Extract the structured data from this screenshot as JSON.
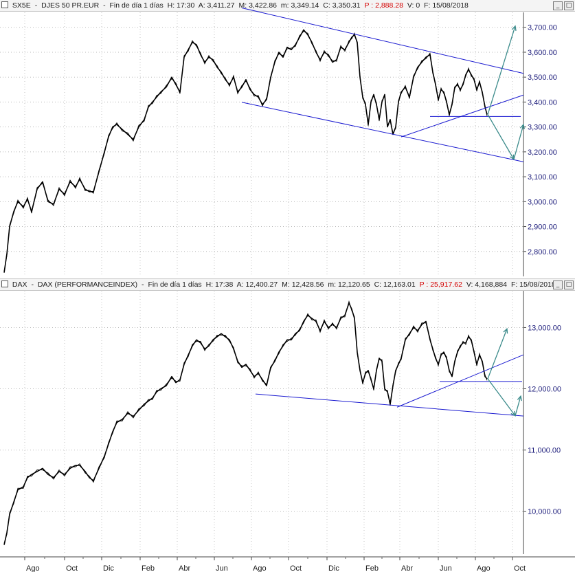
{
  "panels": [
    {
      "id": "sx5e",
      "header": {
        "symbol": "SX5E",
        "name": "DJES 50 PR.EUR",
        "period": "Fin de día 1 días",
        "h": "H: 17:30",
        "a": "A: 3,411.27",
        "m_high": "M: 3,422.86",
        "m_low": "m: 3,349.14",
        "c": "C: 3,350.31",
        "p": "P : 2,888.28",
        "v": "V: 0",
        "f": "F: 15/08/2018"
      }
    },
    {
      "id": "dax",
      "header": {
        "symbol": "DAX",
        "name": "DAX (PERFORMANCEINDEX)",
        "period": "Fin de día 1 días",
        "h": "H: 17:38",
        "a": "A: 12,400.27",
        "m_high": "M: 12,428.56",
        "m_low": "m: 12,120.65",
        "c": "C: 12,163.01",
        "p": "P : 25,917.62",
        "v": "V: 4,168,884",
        "f": "F: 15/08/2018"
      }
    }
  ],
  "window_buttons": [
    "_",
    "□"
  ],
  "chart_data": [
    {
      "type": "line",
      "title": "SX5E - DJES 50 PR.EUR",
      "color": "#000000",
      "line_color": "#1a1ad0",
      "arrow_color": "#3a8a8a",
      "ylim": [
        2700,
        3760
      ],
      "yticks": [
        2800,
        2900,
        3000,
        3100,
        3200,
        3300,
        3400,
        3500,
        3600,
        3700
      ],
      "ytick_labels": [
        "2,800.00",
        "2,900.00",
        "3,000.00",
        "3,100.00",
        "3,200.00",
        "3,300.00",
        "3,400.00",
        "3,500.00",
        "3,600.00",
        "3,700.00"
      ],
      "series": [
        {
          "x": [
            0,
            4,
            8,
            14,
            20,
            28,
            34,
            40,
            48,
            56,
            64,
            72,
            80,
            88,
            96,
            104,
            110,
            118,
            124,
            130,
            138,
            146,
            152,
            158,
            164,
            172,
            180,
            188,
            196,
            204,
            210,
            216,
            222,
            228,
            236,
            244,
            250,
            256,
            262,
            268,
            274,
            280,
            286,
            292,
            298,
            304,
            310,
            316,
            322,
            328,
            334,
            340,
            346,
            352,
            358,
            364,
            370,
            376,
            382,
            388,
            394,
            400,
            406,
            412,
            418,
            424,
            430,
            436,
            442,
            448,
            454,
            460,
            466,
            472,
            478,
            484,
            490,
            496,
            502,
            506,
            510,
            514,
            518,
            522,
            526,
            530,
            534,
            538,
            542,
            546,
            550,
            554,
            558,
            562,
            566,
            570,
            574,
            578,
            584,
            590,
            596,
            602,
            608,
            614,
            620,
            624,
            628,
            632,
            636,
            640,
            644,
            648,
            652,
            656,
            660,
            664,
            668,
            672,
            676,
            680,
            684,
            688,
            692,
            696,
            700,
            703
          ],
          "values": [
            2715,
            2790,
            2900,
            2960,
            3000,
            2980,
            3010,
            2960,
            3050,
            3080,
            3000,
            2990,
            3050,
            3030,
            3080,
            3060,
            3090,
            3050,
            3040,
            3040,
            3120,
            3200,
            3260,
            3300,
            3310,
            3290,
            3270,
            3250,
            3300,
            3330,
            3380,
            3400,
            3420,
            3440,
            3460,
            3500,
            3470,
            3440,
            3580,
            3610,
            3640,
            3630,
            3590,
            3560,
            3580,
            3570,
            3540,
            3520,
            3490,
            3470,
            3500,
            3440,
            3460,
            3490,
            3450,
            3430,
            3420,
            3390,
            3410,
            3500,
            3560,
            3600,
            3580,
            3620,
            3610,
            3630,
            3660,
            3690,
            3670,
            3640,
            3600,
            3570,
            3600,
            3590,
            3560,
            3570,
            3620,
            3610,
            3640,
            3660,
            3670,
            3640,
            3500,
            3420,
            3390,
            3310,
            3400,
            3430,
            3390,
            3330,
            3400,
            3430,
            3300,
            3330,
            3270,
            3300,
            3400,
            3440,
            3460,
            3420,
            3500,
            3540,
            3560,
            3580,
            3590,
            3520,
            3470,
            3410,
            3450,
            3440,
            3400,
            3350,
            3390,
            3460,
            3470,
            3450,
            3470,
            3510,
            3530,
            3510,
            3490,
            3450,
            3480,
            3440,
            3380,
            3350
          ]
        }
      ],
      "annotations": {
        "channel_upper": [
          [
            346,
            3778
          ],
          [
            756,
            3515
          ]
        ],
        "channel_lower": [
          [
            346,
            3399
          ],
          [
            756,
            3160
          ]
        ],
        "trend_support": [
          [
            578,
            3260
          ],
          [
            756,
            3428
          ]
        ],
        "horizontal_support": [
          [
            620,
            3342
          ],
          [
            752,
            3342
          ]
        ],
        "arrow_up_long": [
          [
            704,
            3350
          ],
          [
            744,
            3705
          ]
        ],
        "arrow_down": [
          [
            704,
            3350
          ],
          [
            742,
            3170
          ]
        ],
        "arrow_up_short": [
          [
            742,
            3170
          ],
          [
            756,
            3310
          ]
        ]
      }
    },
    {
      "type": "line",
      "title": "DAX - DAX (PERFORMANCEINDEX)",
      "color": "#000000",
      "line_color": "#1a1ad0",
      "arrow_color": "#3a8a8a",
      "ylim": [
        9300,
        13600
      ],
      "yticks": [
        10000,
        11000,
        12000,
        13000
      ],
      "ytick_labels": [
        "10,000.00",
        "11,000.00",
        "12,000.00",
        "13,000.00"
      ],
      "series": [
        {
          "x": [
            0,
            4,
            8,
            14,
            20,
            28,
            34,
            40,
            48,
            56,
            64,
            72,
            80,
            88,
            96,
            104,
            110,
            118,
            124,
            130,
            138,
            146,
            152,
            158,
            164,
            172,
            180,
            188,
            196,
            204,
            210,
            216,
            222,
            228,
            236,
            244,
            250,
            256,
            262,
            268,
            274,
            280,
            286,
            292,
            298,
            304,
            310,
            316,
            322,
            328,
            334,
            340,
            346,
            352,
            358,
            364,
            370,
            376,
            382,
            388,
            394,
            400,
            406,
            412,
            418,
            424,
            430,
            436,
            442,
            448,
            454,
            460,
            466,
            472,
            478,
            484,
            490,
            496,
            502,
            506,
            510,
            514,
            518,
            522,
            526,
            530,
            534,
            538,
            542,
            546,
            550,
            554,
            558,
            562,
            566,
            570,
            574,
            578,
            584,
            590,
            596,
            602,
            608,
            614,
            620,
            624,
            628,
            632,
            636,
            640,
            644,
            648,
            652,
            656,
            660,
            664,
            668,
            672,
            676,
            680,
            684,
            688,
            692,
            696,
            700,
            703
          ],
          "values": [
            9450,
            9650,
            9950,
            10150,
            10350,
            10400,
            10550,
            10600,
            10650,
            10700,
            10600,
            10550,
            10650,
            10600,
            10700,
            10750,
            10750,
            10650,
            10550,
            10500,
            10700,
            10900,
            11100,
            11300,
            11450,
            11500,
            11600,
            11550,
            11650,
            11750,
            11800,
            11850,
            11950,
            12000,
            12050,
            12200,
            12100,
            12150,
            12400,
            12550,
            12700,
            12800,
            12750,
            12650,
            12700,
            12800,
            12850,
            12900,
            12850,
            12800,
            12650,
            12450,
            12350,
            12400,
            12300,
            12200,
            12250,
            12150,
            12050,
            12350,
            12450,
            12600,
            12700,
            12800,
            12800,
            12900,
            12950,
            13100,
            13200,
            13150,
            13100,
            12950,
            13100,
            13000,
            13050,
            13000,
            13150,
            13200,
            13400,
            13300,
            13150,
            12600,
            12300,
            12100,
            12250,
            12300,
            12150,
            12000,
            12300,
            12500,
            12450,
            12000,
            11950,
            11750,
            12050,
            12300,
            12400,
            12500,
            12800,
            12900,
            13000,
            12950,
            13050,
            13100,
            12800,
            12650,
            12500,
            12400,
            12550,
            12600,
            12500,
            12300,
            12200,
            12450,
            12600,
            12700,
            12750,
            12750,
            12850,
            12800,
            12600,
            12400,
            12550,
            12450,
            12200,
            12163
          ]
        }
      ],
      "annotations": {
        "channel_lower": [
          [
            366,
            11915
          ],
          [
            756,
            11555
          ]
        ],
        "trend_support": [
          [
            572,
            11700
          ],
          [
            756,
            12555
          ]
        ],
        "horizontal_support": [
          [
            634,
            12120
          ],
          [
            754,
            12120
          ]
        ],
        "arrow_up_long": [
          [
            704,
            12163
          ],
          [
            732,
            12980
          ]
        ],
        "arrow_down": [
          [
            704,
            12163
          ],
          [
            744,
            11560
          ]
        ],
        "arrow_up_short": [
          [
            744,
            11560
          ],
          [
            752,
            11880
          ]
        ]
      }
    }
  ],
  "x_axis": {
    "labels": [
      "Ago",
      "Oct",
      "Dic",
      "Feb",
      "Abr",
      "Jun",
      "Ago",
      "Oct",
      "Dic",
      "Feb",
      "Abr",
      "Jun",
      "Ago",
      "Oct"
    ],
    "positions": [
      36,
      94,
      148,
      204,
      258,
      312,
      366,
      420,
      476,
      530,
      582,
      638,
      692,
      746
    ]
  }
}
